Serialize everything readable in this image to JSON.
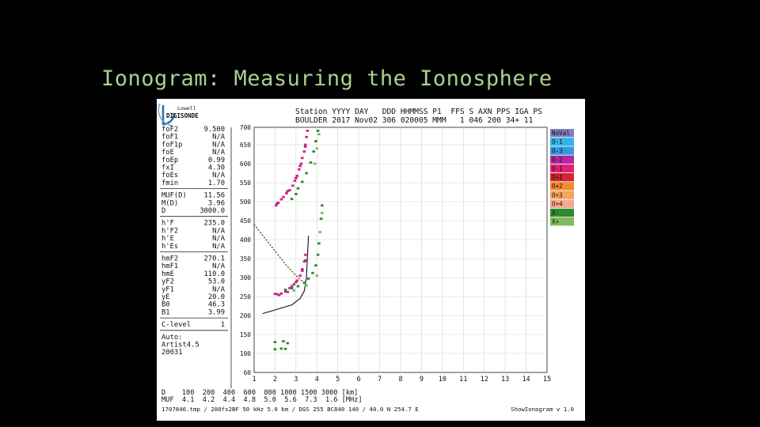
{
  "slide": {
    "title": "Ionogram: Measuring the Ionosphere"
  },
  "ionogram": {
    "logo": {
      "line1": "Lowell",
      "line2": "DIGISONDE"
    },
    "header": {
      "line1": "Station YYYY DAY   DDD HHMMSS P1  FFS S AXN PPS IGA PS",
      "line2": "BOULDER 2017 Nov02 306 020005 MMM   1 046 200 34+ 11"
    },
    "params_group1": [
      {
        "key": "foF2",
        "val": "9.500"
      },
      {
        "key": "foF1",
        "val": "N/A"
      },
      {
        "key": "foF1p",
        "val": "N/A"
      },
      {
        "key": "foE",
        "val": "N/A"
      },
      {
        "key": "foEp",
        "val": "0.99"
      },
      {
        "key": "fxI",
        "val": "4.30"
      },
      {
        "key": "foEs",
        "val": "N/A"
      },
      {
        "key": "fmin",
        "val": "1.70"
      }
    ],
    "params_group2": [
      {
        "key": "MUF(D)",
        "val": "11.56"
      },
      {
        "key": "M(D)",
        "val": "3.96"
      },
      {
        "key": "D",
        "val": "3000.0"
      }
    ],
    "params_group3": [
      {
        "key": "h'F",
        "val": "235.0"
      },
      {
        "key": "h'F2",
        "val": "N/A"
      },
      {
        "key": "h'E",
        "val": "N/A"
      },
      {
        "key": "h'Es",
        "val": "N/A"
      }
    ],
    "params_group4": [
      {
        "key": "hmF2",
        "val": "270.1"
      },
      {
        "key": "hmF1",
        "val": "N/A"
      },
      {
        "key": "hmE",
        "val": "110.0"
      },
      {
        "key": "yF2",
        "val": "53.0"
      },
      {
        "key": "yF1",
        "val": "N/A"
      },
      {
        "key": "yE",
        "val": "20.0"
      },
      {
        "key": "B0",
        "val": "46.3"
      },
      {
        "key": "B1",
        "val": "3.99"
      }
    ],
    "params_group5": [
      {
        "key": "C-level",
        "val": "1"
      }
    ],
    "auto_block": [
      "Auto:",
      "Artist4.5",
      "20031"
    ],
    "legend": [
      {
        "label": "NoVal",
        "color": "#7f7fbf"
      },
      {
        "label": "O-1",
        "color": "#33b5e5"
      },
      {
        "label": "O-3",
        "color": "#2f9be0"
      },
      {
        "label": "O-2",
        "color": "#b3279f"
      },
      {
        "label": "O-I",
        "color": "#e0217a"
      },
      {
        "label": "O+I",
        "color": "#d7242e"
      },
      {
        "label": "O+2",
        "color": "#f28a2e"
      },
      {
        "label": "O+3",
        "color": "#f5a55a"
      },
      {
        "label": "O+4",
        "color": "#f7a88e"
      },
      {
        "label": "X-",
        "color": "#2f8a2f"
      },
      {
        "label": "X+",
        "color": "#7fba5b"
      }
    ],
    "bottom": {
      "row_d": "D    100  200  400  600  800 1000 1500 3000 [km]",
      "row_muf": "MUF  4.1  4.2  4.4  4.8  5.0  5.6  7.3  1.6 [MHz]",
      "footer_left": "1707846.tmp / 280fs2BF 50 kHz 5.0 km / DGS 255 BC840 140 / 40.0 N 254.7 E",
      "footer_right": "ShowIonogram v 1.0"
    }
  },
  "chart_data": {
    "type": "scatter",
    "title": "",
    "xlabel": "",
    "ylabel": "",
    "xlim": [
      1,
      15
    ],
    "ylim": [
      60,
      700
    ],
    "x_ticks": [
      "1",
      "2",
      "3",
      "4",
      "5",
      "6",
      "7",
      "8",
      "9",
      "10",
      "11",
      "12",
      "13",
      "14",
      "15"
    ],
    "y_ticks": [
      "60",
      "100",
      "150",
      "200",
      "250",
      "300",
      "350",
      "400",
      "450",
      "500",
      "550",
      "600",
      "650",
      "700"
    ],
    "grid": true,
    "legend_placement": "right",
    "series": [
      {
        "name": "O-I",
        "points": [
          [
            2.05,
            490
          ],
          [
            2.15,
            497
          ],
          [
            2.3,
            506
          ],
          [
            2.4,
            512
          ],
          [
            2.55,
            522
          ],
          [
            2.7,
            530
          ],
          [
            2.85,
            542
          ],
          [
            2.95,
            555
          ],
          [
            3.05,
            568
          ],
          [
            3.15,
            585
          ],
          [
            3.25,
            600
          ],
          [
            3.3,
            615
          ],
          [
            3.4,
            632
          ],
          [
            3.45,
            650
          ],
          [
            3.5,
            672
          ],
          [
            3.55,
            690
          ],
          [
            2.0,
            257
          ],
          [
            2.1,
            256
          ],
          [
            2.3,
            258
          ],
          [
            2.5,
            263
          ],
          [
            2.7,
            272
          ],
          [
            2.9,
            282
          ],
          [
            3.05,
            292
          ],
          [
            3.2,
            305
          ],
          [
            3.3,
            322
          ],
          [
            3.4,
            342
          ],
          [
            3.45,
            360
          ]
        ]
      },
      {
        "name": "O-2",
        "points": [
          [
            2.1,
            495
          ],
          [
            2.6,
            528
          ],
          [
            3.0,
            562
          ],
          [
            3.2,
            594
          ],
          [
            3.45,
            645
          ],
          [
            2.2,
            254
          ],
          [
            2.6,
            262
          ],
          [
            2.8,
            277
          ],
          [
            3.0,
            288
          ],
          [
            3.3,
            318
          ],
          [
            3.45,
            345
          ]
        ]
      },
      {
        "name": "X-",
        "points": [
          [
            2.8,
            507
          ],
          [
            3.0,
            520
          ],
          [
            3.1,
            535
          ],
          [
            3.3,
            552
          ],
          [
            3.5,
            575
          ],
          [
            3.7,
            603
          ],
          [
            3.85,
            632
          ],
          [
            3.95,
            660
          ],
          [
            4.05,
            690
          ],
          [
            2.5,
            268
          ],
          [
            2.8,
            272
          ],
          [
            3.1,
            277
          ],
          [
            3.4,
            286
          ],
          [
            3.6,
            297
          ],
          [
            3.8,
            312
          ],
          [
            3.95,
            332
          ],
          [
            4.05,
            360
          ],
          [
            4.1,
            390
          ],
          [
            4.15,
            420
          ],
          [
            4.2,
            455
          ],
          [
            4.25,
            490
          ],
          [
            2.0,
            111
          ],
          [
            2.3,
            113
          ],
          [
            2.5,
            112
          ],
          [
            2.0,
            130
          ],
          [
            2.4,
            132
          ],
          [
            2.6,
            127
          ]
        ]
      },
      {
        "name": "X+",
        "points": [
          [
            3.9,
            600
          ],
          [
            4.0,
            640
          ],
          [
            4.1,
            680
          ],
          [
            2.9,
            266
          ],
          [
            3.5,
            279
          ],
          [
            4.0,
            305
          ],
          [
            4.15,
            420
          ],
          [
            4.25,
            470
          ]
        ]
      }
    ],
    "profile": [
      [
        1.4,
        205
      ],
      [
        2.2,
        218
      ],
      [
        2.8,
        228
      ],
      [
        3.2,
        245
      ],
      [
        3.4,
        265
      ],
      [
        3.5,
        300
      ],
      [
        3.55,
        360
      ],
      [
        3.6,
        410
      ]
    ],
    "extraordinary_trace": [
      [
        1.0,
        440
      ],
      [
        1.5,
        405
      ],
      [
        2.0,
        370
      ],
      [
        2.5,
        335
      ],
      [
        3.0,
        305
      ],
      [
        3.3,
        290
      ]
    ]
  }
}
